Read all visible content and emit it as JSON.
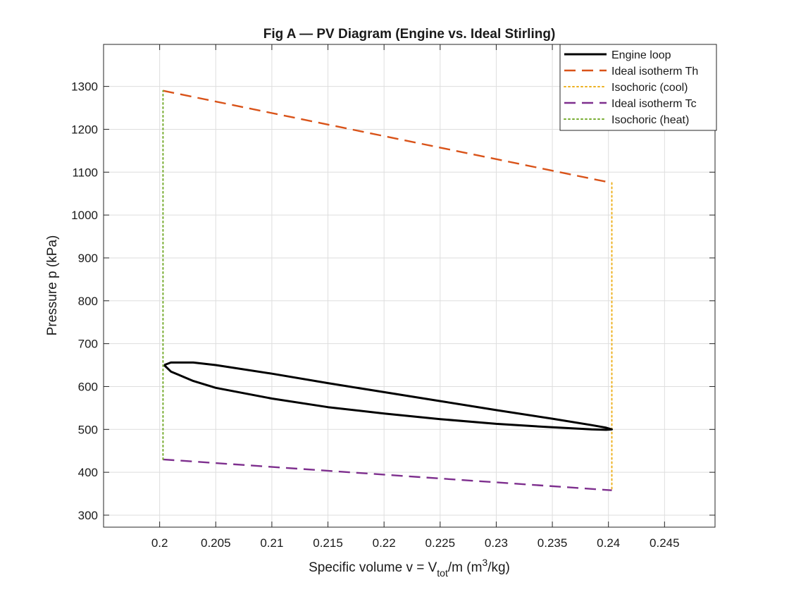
{
  "chart_data": {
    "type": "line",
    "title": "Fig A — PV Diagram (Engine vs. Ideal Stirling)",
    "xlabel": {
      "prefix": "Specific volume v = V",
      "sub": "tot",
      "mid": "/m (m",
      "sup": "3",
      "suffix": "/kg)"
    },
    "ylabel": "Pressure p (kPa)",
    "xlim": [
      0.195,
      0.2495
    ],
    "ylim": [
      272,
      1398
    ],
    "xticks": [
      "0.2",
      "0.205",
      "0.21",
      "0.215",
      "0.22",
      "0.225",
      "0.23",
      "0.235",
      "0.24",
      "0.245"
    ],
    "xtick_values": [
      0.2,
      0.205,
      0.21,
      0.215,
      0.22,
      0.225,
      0.23,
      0.235,
      0.24,
      0.245
    ],
    "yticks": [
      "300",
      "400",
      "500",
      "600",
      "700",
      "800",
      "900",
      "1000",
      "1100",
      "1200",
      "1300"
    ],
    "ytick_values": [
      300,
      400,
      500,
      600,
      700,
      800,
      900,
      1000,
      1100,
      1200,
      1300
    ],
    "grid": true,
    "legend_position": "top-right",
    "series": [
      {
        "name": "Engine loop",
        "color": "#000000",
        "style": "solid",
        "x": [
          0.2004,
          0.201,
          0.203,
          0.205,
          0.21,
          0.215,
          0.22,
          0.225,
          0.23,
          0.235,
          0.2385,
          0.2398,
          0.2403,
          0.2398,
          0.2385,
          0.235,
          0.23,
          0.225,
          0.22,
          0.215,
          0.21,
          0.205,
          0.203,
          0.201,
          0.2004
        ],
        "y": [
          650,
          656,
          656,
          650,
          630,
          608,
          587,
          566,
          545,
          525,
          510,
          504,
          500,
          499,
          500,
          505,
          513,
          524,
          537,
          552,
          572,
          597,
          613,
          635,
          650
        ]
      },
      {
        "name": "Ideal isotherm Th",
        "color": "#d95319",
        "style": "dashed",
        "x": [
          0.2003,
          0.2403
        ],
        "y": [
          1290,
          1075
        ]
      },
      {
        "name": "Isochoric (cool)",
        "color": "#edb120",
        "style": "dotted",
        "x": [
          0.2403,
          0.2403
        ],
        "y": [
          1075,
          358
        ]
      },
      {
        "name": "Ideal isotherm Tc",
        "color": "#7e2f8e",
        "style": "dashed",
        "x": [
          0.2003,
          0.2403
        ],
        "y": [
          430,
          358
        ]
      },
      {
        "name": "Isochoric (heat)",
        "color": "#77ac30",
        "style": "dotted",
        "x": [
          0.2003,
          0.2003
        ],
        "y": [
          430,
          1290
        ]
      }
    ]
  }
}
